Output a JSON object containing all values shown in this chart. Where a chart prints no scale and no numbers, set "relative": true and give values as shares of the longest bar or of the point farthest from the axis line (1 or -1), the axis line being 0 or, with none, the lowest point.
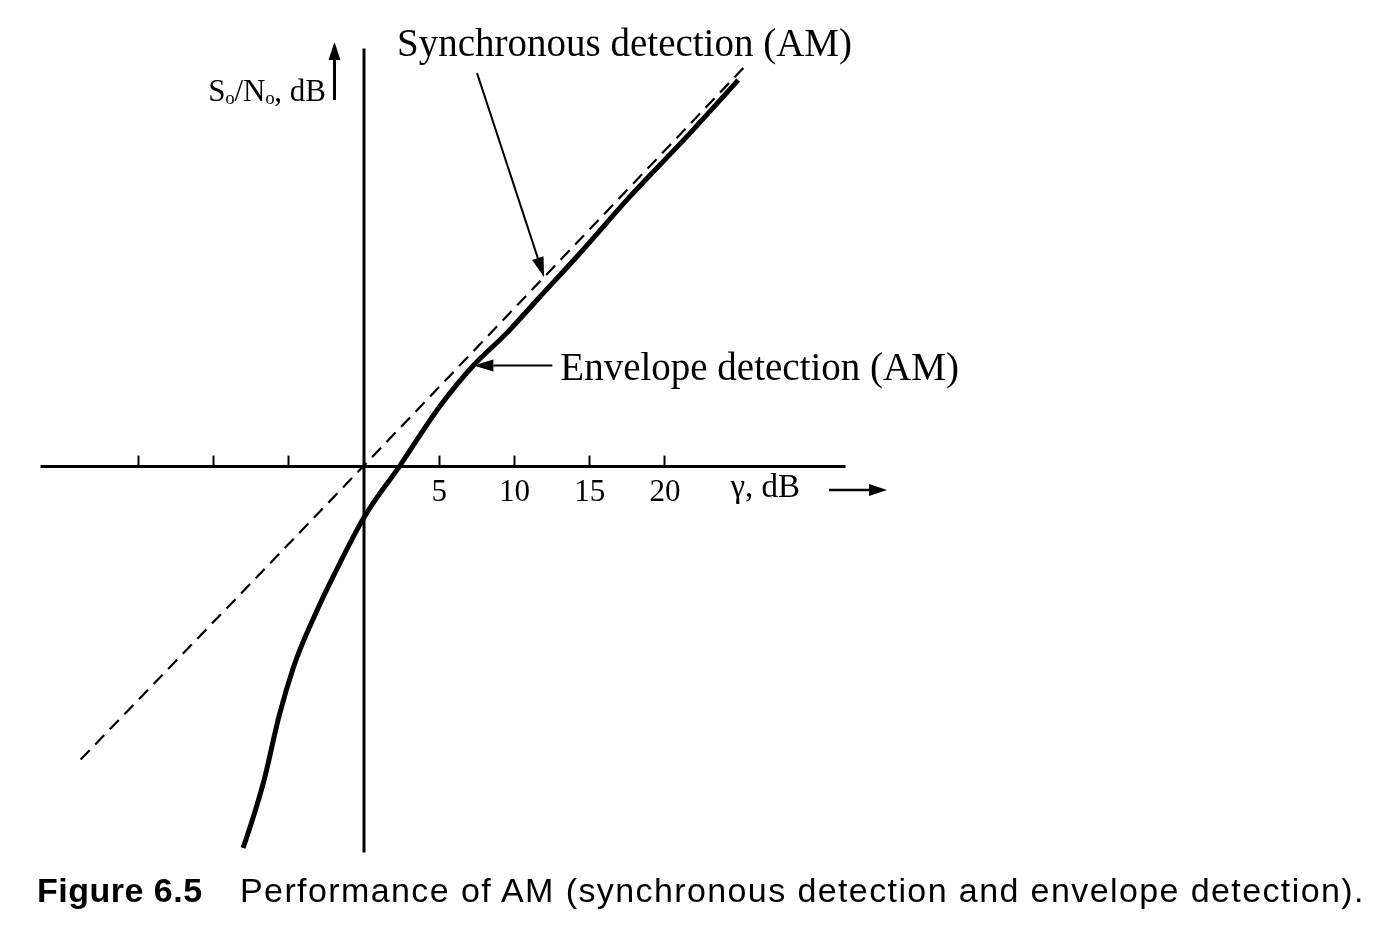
{
  "chart_data": {
    "type": "line",
    "relative": true,
    "xlabel": "γ, dB",
    "ylabel": "Sₒ/Nₒ, dB",
    "legend": "top right",
    "xlim": [
      -21.5,
      32
    ],
    "xticks": [
      {
        "value": -15,
        "label": null
      },
      {
        "value": -10,
        "label": null
      },
      {
        "value": -5,
        "label": null
      },
      5,
      10,
      15,
      20
    ],
    "series": [
      {
        "name": "Synchronous detection (AM)",
        "color": "#000000",
        "line_style": "dashed",
        "x": [
          -18.8,
          0,
          12,
          25.5
        ],
        "values": [
          -0.73,
          0,
          0.47,
          1
        ]
      },
      {
        "name": "Envelope detection (AM)",
        "color": "#000000",
        "line_style": "solid",
        "x": [
          -8.0,
          -6.6,
          -5.6,
          -4.65,
          -3.1,
          -1.55,
          -0.45,
          0,
          2.4,
          5.1,
          7.3,
          9.5,
          11.7,
          14.4,
          17.7,
          21.5,
          24.9
        ],
        "values": [
          -0.95,
          -0.78,
          -0.62,
          -0.5,
          -0.36,
          -0.24,
          -0.16,
          -0.13,
          0,
          0.15,
          0.25,
          0.33,
          0.42,
          0.53,
          0.67,
          0.82,
          0.96
        ]
      }
    ],
    "annotations": [
      "Figure 6.5",
      "Performance of AM (synchronous detection and envelope detection)."
    ]
  }
}
